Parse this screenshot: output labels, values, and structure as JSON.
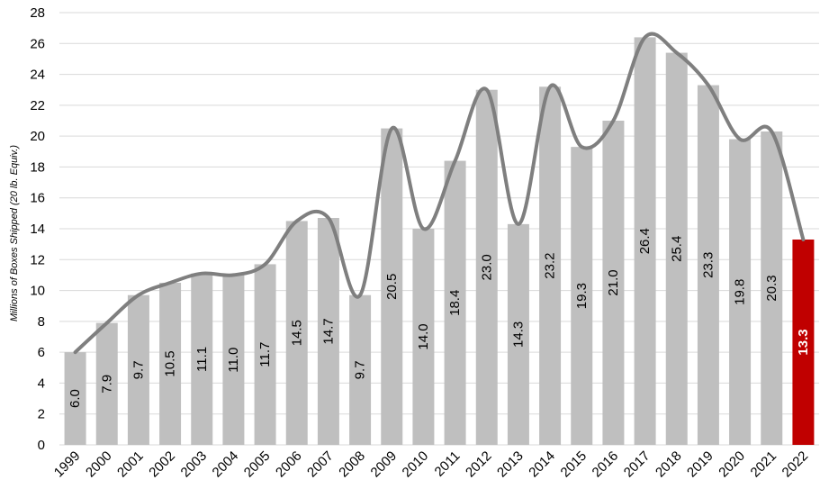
{
  "chart_data": {
    "type": "bar",
    "title": "",
    "xlabel": "",
    "ylabel": "Millions of Boxes Shipped (20 lb. Equiv.)",
    "ylim": [
      0,
      28
    ],
    "yticks": [
      0,
      2,
      4,
      6,
      8,
      10,
      12,
      14,
      16,
      18,
      20,
      22,
      24,
      26,
      28
    ],
    "grid": true,
    "legend": "none",
    "categories": [
      "1999",
      "2000",
      "2001",
      "2002",
      "2003",
      "2004",
      "2005",
      "2006",
      "2007",
      "2008",
      "2009",
      "2010",
      "2011",
      "2012",
      "2013",
      "2014",
      "2015",
      "2016",
      "2017",
      "2018",
      "2019",
      "2020",
      "2021",
      "2022"
    ],
    "series": [
      {
        "values": [
          6.0,
          7.9,
          9.7,
          10.5,
          11.1,
          11.0,
          11.7,
          14.5,
          14.7,
          9.7,
          20.5,
          14.0,
          18.4,
          23.0,
          14.3,
          23.2,
          19.3,
          21.0,
          26.4,
          25.4,
          23.3,
          19.8,
          20.3,
          13.3
        ],
        "value_labels": [
          "6.0",
          "7.9",
          "9.7",
          "10.5",
          "11.1",
          "11.0",
          "11.7",
          "14.5",
          "14.7",
          "9.7",
          "20.5",
          "14.0",
          "18.4",
          "23.0",
          "14.3",
          "23.2",
          "19.3",
          "21.0",
          "26.4",
          "25.4",
          "23.3",
          "19.8",
          "20.3",
          "13.3"
        ]
      }
    ],
    "overlay_line": "smoothed line through bar tops",
    "colors": {
      "bar": "#bfbfbf",
      "highlight_bar": "#c00000",
      "highlight_label": "#ffffff",
      "line": "#7f7f7f",
      "grid": "#d9d9d9",
      "label": "#000000"
    },
    "highlight_index": 23
  }
}
